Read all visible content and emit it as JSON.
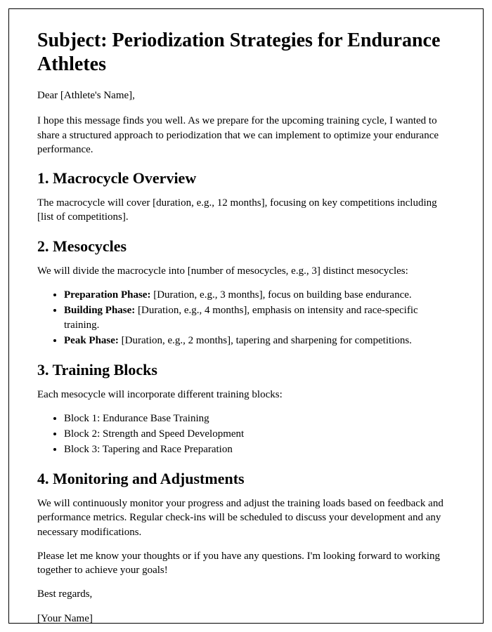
{
  "title": "Subject: Periodization Strategies for Endurance Athletes",
  "greeting": "Dear [Athlete's Name],",
  "intro": "I hope this message finds you well. As we prepare for the upcoming training cycle, I wanted to share a structured approach to periodization that we can implement to optimize your endurance performance.",
  "section1": {
    "heading": "1. Macrocycle Overview",
    "text": "The macrocycle will cover [duration, e.g., 12 months], focusing on key competitions including [list of competitions]."
  },
  "section2": {
    "heading": "2. Mesocycles",
    "intro": "We will divide the macrocycle into [number of mesocycles, e.g., 3] distinct mesocycles:",
    "items": [
      {
        "label": "Preparation Phase:",
        "text": " [Duration, e.g., 3 months], focus on building base endurance."
      },
      {
        "label": "Building Phase:",
        "text": " [Duration, e.g., 4 months], emphasis on intensity and race-specific training."
      },
      {
        "label": "Peak Phase:",
        "text": " [Duration, e.g., 2 months], tapering and sharpening for competitions."
      }
    ]
  },
  "section3": {
    "heading": "3. Training Blocks",
    "intro": "Each mesocycle will incorporate different training blocks:",
    "items": [
      "Block 1: Endurance Base Training",
      "Block 2: Strength and Speed Development",
      "Block 3: Tapering and Race Preparation"
    ]
  },
  "section4": {
    "heading": "4. Monitoring and Adjustments",
    "text": "We will continuously monitor your progress and adjust the training loads based on feedback and performance metrics. Regular check-ins will be scheduled to discuss your development and any necessary modifications."
  },
  "closing1": "Please let me know your thoughts or if you have any questions. I'm looking forward to working together to achieve your goals!",
  "closing2": "Best regards,",
  "signature": "[Your Name]"
}
